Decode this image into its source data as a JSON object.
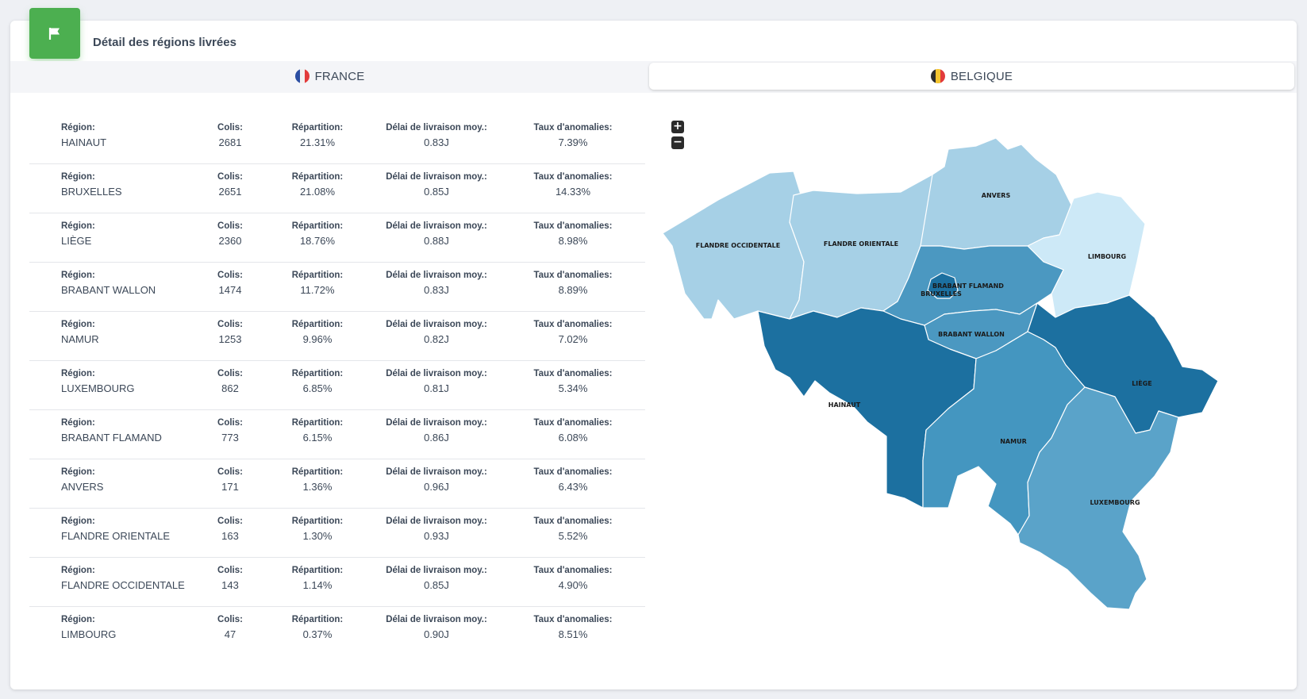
{
  "header": {
    "title": "Détail des régions livrées",
    "icon": "flag-icon",
    "icon_bg": "#4caf50"
  },
  "tabs": [
    {
      "label": "FRANCE",
      "flag": "france-flag-icon",
      "active": false
    },
    {
      "label": "BELGIQUE",
      "flag": "belgium-flag-icon",
      "active": true
    }
  ],
  "table": {
    "labels": {
      "region": "Région:",
      "colis": "Colis:",
      "repartition": "Répartition:",
      "delai": "Délai de livraison moy.:",
      "taux": "Taux d'anomalies:"
    },
    "rows": [
      {
        "region": "HAINAUT",
        "colis": "2681",
        "repartition": "21.31%",
        "delai": "0.83J",
        "taux": "7.39%"
      },
      {
        "region": "BRUXELLES",
        "colis": "2651",
        "repartition": "21.08%",
        "delai": "0.85J",
        "taux": "14.33%"
      },
      {
        "region": "LIÈGE",
        "colis": "2360",
        "repartition": "18.76%",
        "delai": "0.88J",
        "taux": "8.98%"
      },
      {
        "region": "BRABANT WALLON",
        "colis": "1474",
        "repartition": "11.72%",
        "delai": "0.83J",
        "taux": "8.89%"
      },
      {
        "region": "NAMUR",
        "colis": "1253",
        "repartition": "9.96%",
        "delai": "0.82J",
        "taux": "7.02%"
      },
      {
        "region": "LUXEMBOURG",
        "colis": "862",
        "repartition": "6.85%",
        "delai": "0.81J",
        "taux": "5.34%"
      },
      {
        "region": "BRABANT FLAMAND",
        "colis": "773",
        "repartition": "6.15%",
        "delai": "0.86J",
        "taux": "6.08%"
      },
      {
        "region": "ANVERS",
        "colis": "171",
        "repartition": "1.36%",
        "delai": "0.96J",
        "taux": "6.43%"
      },
      {
        "region": "FLANDRE ORIENTALE",
        "colis": "163",
        "repartition": "1.30%",
        "delai": "0.93J",
        "taux": "5.52%"
      },
      {
        "region": "FLANDRE OCCIDENTALE",
        "colis": "143",
        "repartition": "1.14%",
        "delai": "0.85J",
        "taux": "4.90%"
      },
      {
        "region": "LIMBOURG",
        "colis": "47",
        "repartition": "0.37%",
        "delai": "0.90J",
        "taux": "8.51%"
      }
    ]
  },
  "map": {
    "zoom_in": "+",
    "zoom_out": "−",
    "regions": {
      "flandre_occidentale": {
        "label": "FLANDRE OCCIDENTALE",
        "color": "#a6d0e6"
      },
      "flandre_orientale": {
        "label": "FLANDRE ORIENTALE",
        "color": "#a6d0e6"
      },
      "anvers": {
        "label": "ANVERS",
        "color": "#a6d0e6"
      },
      "limbourg": {
        "label": "LIMBOURG",
        "color": "#cde9f7"
      },
      "brabant_flamand": {
        "label": "BRABANT FLAMAND",
        "color": "#4b98c1"
      },
      "bruxelles": {
        "label": "BRUXELLES",
        "color": "#1c70a0"
      },
      "brabant_wallon": {
        "label": "BRABANT WALLON",
        "color": "#4b98c1"
      },
      "hainaut": {
        "label": "HAINAUT",
        "color": "#1c70a0"
      },
      "liege": {
        "label": "LIÈGE",
        "color": "#1c70a0"
      },
      "namur": {
        "label": "NAMUR",
        "color": "#4496c0"
      },
      "luxembourg": {
        "label": "LUXEMBOURG",
        "color": "#5aa3c9"
      }
    }
  }
}
